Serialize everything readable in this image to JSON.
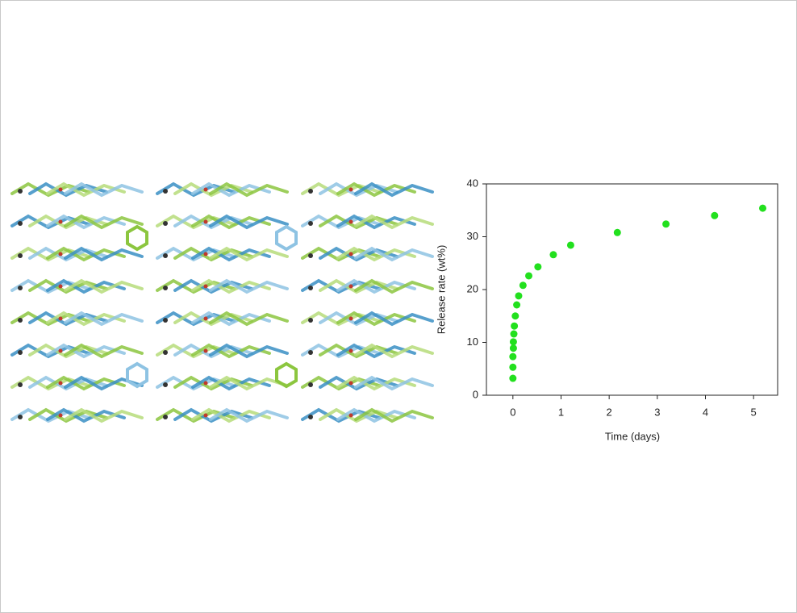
{
  "chart_data": {
    "type": "scatter",
    "x_label": "Time (days)",
    "y_label": "Release rate (wt%)",
    "series": [
      {
        "color": "#22e01e",
        "x": [
          0,
          0,
          0,
          0.01,
          0.01,
          0.02,
          0.03,
          0.05,
          0.08,
          0.12,
          0.21,
          0.33,
          0.52,
          0.84,
          1.2,
          2.17,
          3.18,
          4.19,
          5.19
        ],
        "values": [
          3.2,
          5.3,
          7.3,
          8.9,
          10.1,
          11.6,
          13.1,
          15.0,
          17.1,
          18.8,
          20.8,
          22.6,
          24.3,
          26.6,
          28.4,
          30.8,
          32.4,
          34.0,
          35.4
        ]
      }
    ],
    "xlim": [
      -0.55,
      5.5
    ],
    "xticks": [
      0,
      1,
      2,
      3,
      4,
      5
    ],
    "ylim": [
      0,
      40
    ],
    "yticks": [
      0,
      10,
      20,
      30,
      40
    ]
  }
}
